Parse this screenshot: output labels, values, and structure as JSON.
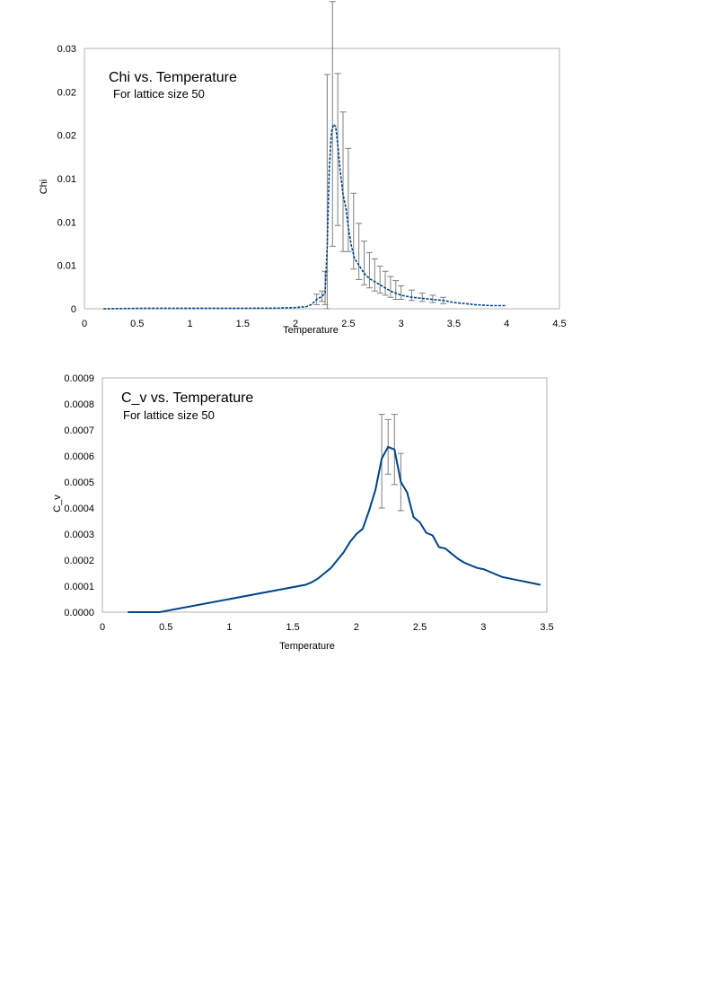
{
  "chart_data": [
    {
      "type": "line",
      "title": "Chi vs. Temperature",
      "subtitle": "For lattice size 50",
      "xlabel": "Temperature",
      "ylabel": "Chi",
      "xlim": [
        0,
        4.5
      ],
      "ylim": [
        0,
        0.025
      ],
      "x_ticks": [
        "0",
        "0.5",
        "1",
        "1.5",
        "2",
        "2.5",
        "3",
        "3.5",
        "4",
        "4.5"
      ],
      "y_ticks": [
        "0",
        "0.01",
        "0.01",
        "0.01",
        "0.02",
        "0.02",
        "0.03"
      ],
      "grid": false,
      "legend": "none",
      "line_style": "dashed",
      "color": "#004586",
      "series": [
        {
          "x": [
            0.18,
            0.6,
            1.0,
            1.5,
            1.8,
            2.0,
            2.1,
            2.15,
            2.2,
            2.25,
            2.28,
            2.3,
            2.32,
            2.34,
            2.36,
            2.38,
            2.4,
            2.42,
            2.45,
            2.48,
            2.5,
            2.53,
            2.56,
            2.6,
            2.65,
            2.7,
            2.75,
            2.8,
            2.85,
            2.9,
            2.95,
            3.0,
            3.1,
            3.2,
            3.3,
            3.4,
            3.5,
            3.7,
            3.85,
            4.0
          ],
          "y": [
            0,
            5e-05,
            5e-05,
            5e-05,
            6e-05,
            0.00012,
            0.0002,
            0.0004,
            0.0009,
            0.0012,
            0.0015,
            0.006,
            0.0135,
            0.017,
            0.0177,
            0.0175,
            0.0158,
            0.0135,
            0.011,
            0.0095,
            0.0078,
            0.006,
            0.0048,
            0.0042,
            0.0034,
            0.0029,
            0.0026,
            0.0023,
            0.002,
            0.0017,
            0.0015,
            0.0013,
            0.0011,
            0.001,
            0.0009,
            0.0008,
            0.0006,
            0.0004,
            0.0003,
            0.0003
          ],
          "err_x": [
            2.2,
            2.25,
            2.28,
            2.3,
            2.35,
            2.4,
            2.45,
            2.5,
            2.55,
            2.6,
            2.65,
            2.7,
            2.75,
            2.8,
            2.85,
            2.9,
            2.95,
            3.0,
            3.1,
            3.2,
            3.3,
            3.4
          ],
          "err_low": [
            0.0004,
            0.0007,
            0.0004,
            0.0,
            0.006,
            0.008,
            0.0055,
            0.0055,
            0.0038,
            0.0028,
            0.0023,
            0.002,
            0.0017,
            0.0015,
            0.0013,
            0.0011,
            0.0009,
            0.0009,
            0.0008,
            0.0007,
            0.0006,
            0.0005
          ],
          "err_high": [
            0.0014,
            0.0017,
            0.0036,
            0.0225,
            0.0295,
            0.0226,
            0.0189,
            0.0154,
            0.0111,
            0.0082,
            0.0065,
            0.0054,
            0.0048,
            0.0041,
            0.0036,
            0.0031,
            0.0027,
            0.0022,
            0.0018,
            0.0015,
            0.0013,
            0.0011
          ]
        }
      ]
    },
    {
      "type": "line",
      "title": "C_v vs. Temperature",
      "subtitle": "For lattice size 50",
      "xlabel": "Temperature",
      "ylabel": "C_v",
      "xlim": [
        0,
        3.5
      ],
      "ylim": [
        0,
        0.0009
      ],
      "x_ticks": [
        "0",
        "0.5",
        "1",
        "1.5",
        "2",
        "2.5",
        "3",
        "3.5"
      ],
      "y_ticks": [
        "0.0000",
        "0.0001",
        "0.0002",
        "0.0003",
        "0.0004",
        "0.0005",
        "0.0006",
        "0.0007",
        "0.0008",
        "0.0009"
      ],
      "grid": false,
      "legend": "none",
      "line_style": "solid",
      "color": "#004586",
      "series": [
        {
          "x": [
            0.2,
            0.45,
            1.6,
            1.65,
            1.7,
            1.75,
            1.8,
            1.85,
            1.9,
            1.95,
            2.0,
            2.05,
            2.1,
            2.15,
            2.2,
            2.25,
            2.3,
            2.35,
            2.4,
            2.45,
            2.5,
            2.55,
            2.6,
            2.65,
            2.7,
            2.75,
            2.8,
            2.85,
            2.9,
            2.95,
            3.0,
            3.05,
            3.1,
            3.15,
            3.2,
            3.25,
            3.3,
            3.35,
            3.4,
            3.45
          ],
          "y": [
            0.0,
            0.0,
            0.000105,
            0.000115,
            0.00013,
            0.00015,
            0.00017,
            0.0002,
            0.00023,
            0.00027,
            0.0003,
            0.00032,
            0.00039,
            0.00047,
            0.00059,
            0.000635,
            0.000625,
            0.0005,
            0.00046,
            0.000365,
            0.000345,
            0.000305,
            0.000295,
            0.00025,
            0.000245,
            0.000225,
            0.000205,
            0.00019,
            0.00018,
            0.00017,
            0.000165,
            0.000155,
            0.000145,
            0.000135,
            0.00013,
            0.000125,
            0.00012,
            0.000115,
            0.00011,
            0.000105
          ],
          "err_x": [
            2.2,
            2.25,
            2.3,
            2.35
          ],
          "err_low": [
            0.0004,
            0.00053,
            0.00049,
            0.00039
          ],
          "err_high": [
            0.00076,
            0.00074,
            0.00076,
            0.00061
          ]
        }
      ]
    }
  ]
}
